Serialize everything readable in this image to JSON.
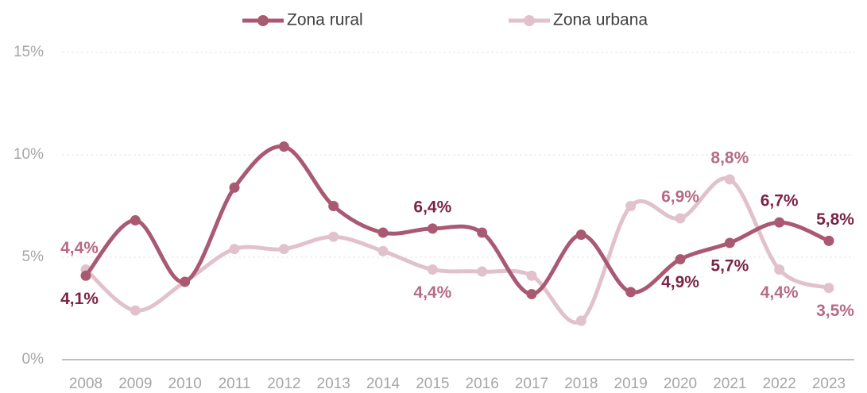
{
  "chart_data": {
    "type": "line",
    "x": [
      "2008",
      "2009",
      "2010",
      "2011",
      "2012",
      "2013",
      "2014",
      "2015",
      "2016",
      "2017",
      "2018",
      "2019",
      "2020",
      "2021",
      "2022",
      "2023"
    ],
    "series": [
      {
        "name": "Zona rural",
        "color": "#a95a72",
        "label_color": "#7a2546",
        "values": [
          4.1,
          6.8,
          3.8,
          8.4,
          10.4,
          7.5,
          6.2,
          6.4,
          6.2,
          3.2,
          6.1,
          3.3,
          4.9,
          5.7,
          6.7,
          5.8
        ],
        "value_labels": [
          "4,1%",
          null,
          null,
          null,
          null,
          null,
          null,
          "6,4%",
          null,
          null,
          null,
          null,
          "4,9%",
          "5,7%",
          "6,7%",
          "5,8%"
        ]
      },
      {
        "name": "Zona urbana",
        "color": "#e1c2cc",
        "label_color": "#b66b86",
        "values": [
          4.4,
          2.4,
          3.8,
          5.4,
          5.4,
          6.0,
          5.3,
          4.4,
          4.3,
          4.1,
          1.9,
          7.5,
          6.9,
          8.8,
          4.4,
          3.5
        ],
        "value_labels": [
          "4,4%",
          null,
          null,
          null,
          null,
          null,
          null,
          "4,4%",
          null,
          null,
          null,
          null,
          "6,9%",
          "8,8%",
          "4,4%",
          "3,5%"
        ]
      }
    ],
    "ylim": [
      0,
      15
    ],
    "yticks": [
      {
        "value": 0,
        "label": "0%"
      },
      {
        "value": 5,
        "label": "5%"
      },
      {
        "value": 10,
        "label": "10%"
      },
      {
        "value": 15,
        "label": "15%"
      }
    ],
    "grid": true,
    "legend": "top"
  }
}
